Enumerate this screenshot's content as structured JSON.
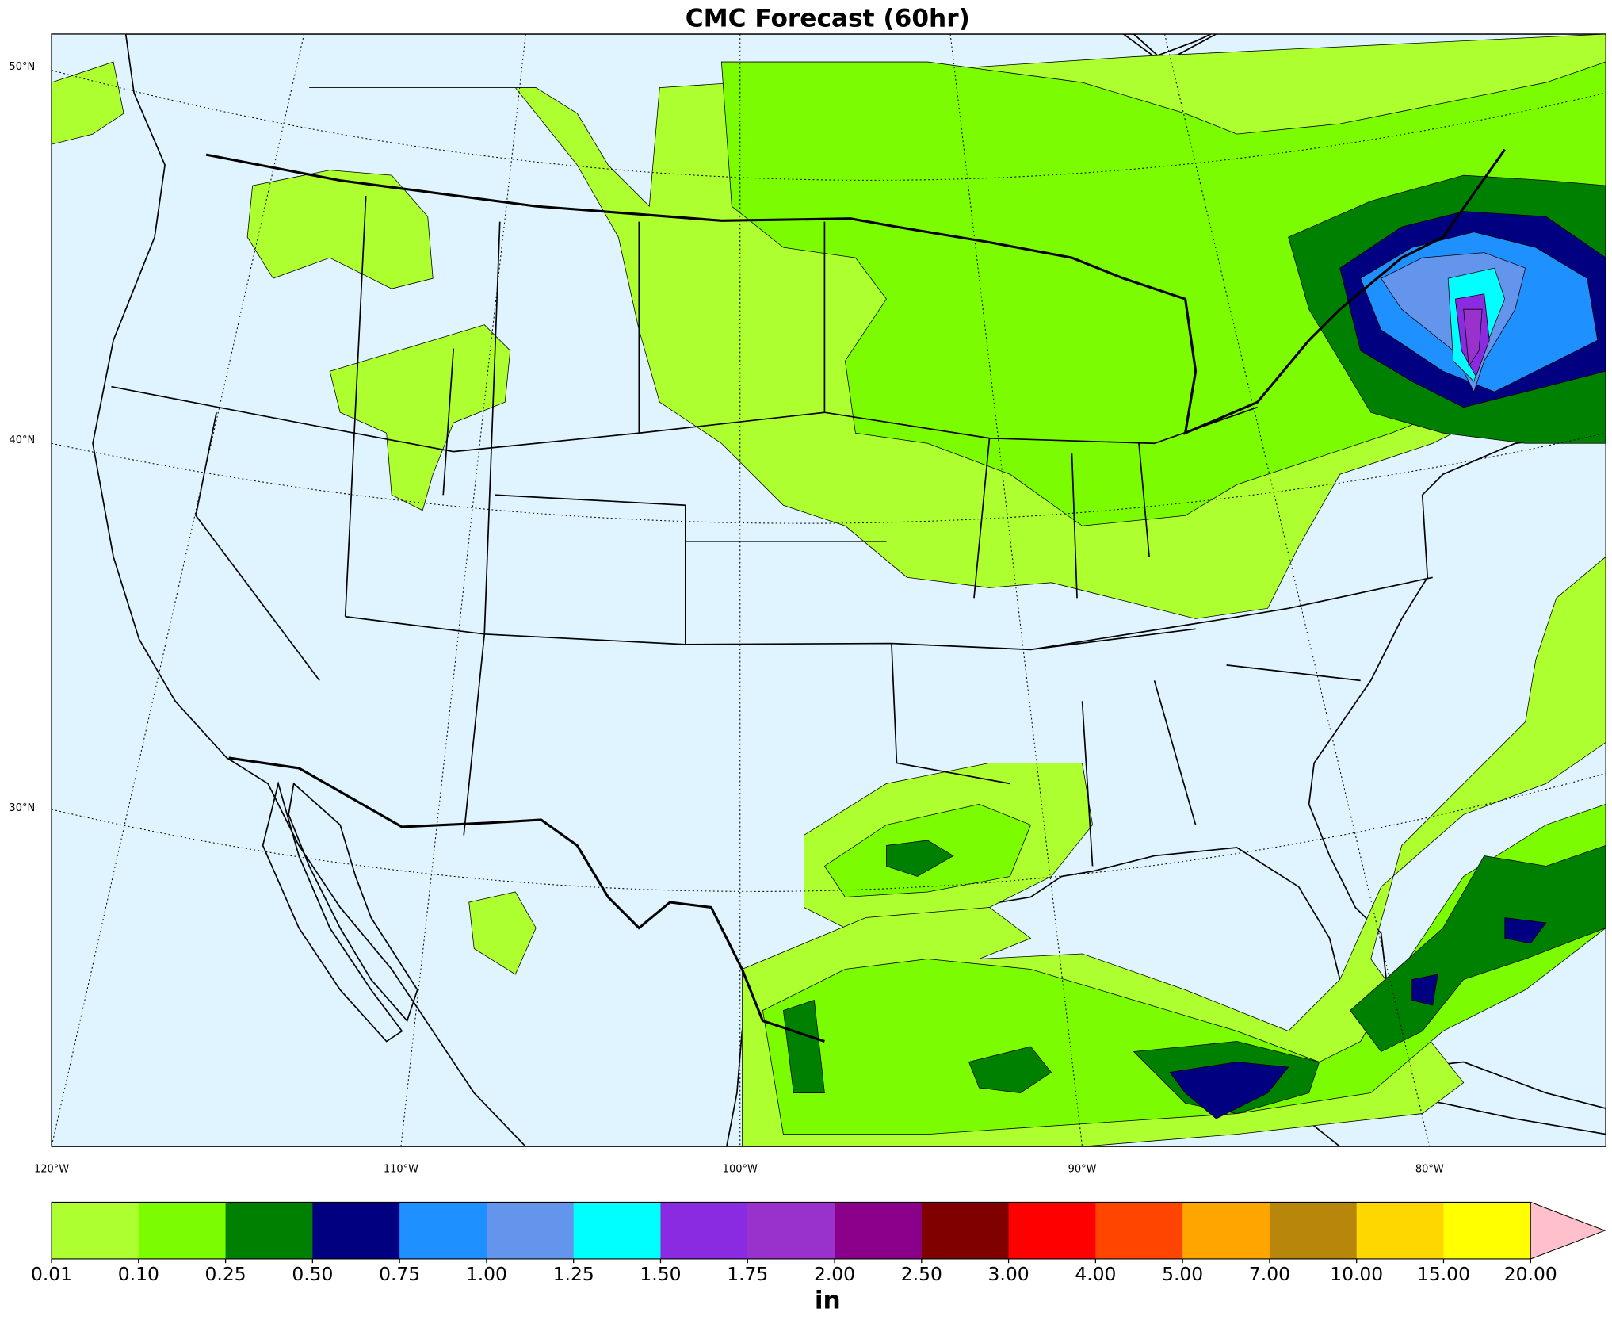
{
  "title": "CMC Forecast (60hr)",
  "map": {
    "lat_labels": [
      "50°N",
      "40°N",
      "30°N"
    ],
    "lon_labels": [
      "120°W",
      "110°W",
      "100°W",
      "90°W",
      "80°W"
    ]
  },
  "colorbar": {
    "unit": "in",
    "ticks": [
      {
        "value": 0.01,
        "label": "0.01"
      },
      {
        "value": 0.1,
        "label": "0.10"
      },
      {
        "value": 0.25,
        "label": "0.25"
      },
      {
        "value": 0.5,
        "label": "0.50"
      },
      {
        "value": 0.75,
        "label": "0.75"
      },
      {
        "value": 1,
        "label": "1.00"
      },
      {
        "value": 1.25,
        "label": "1.25"
      },
      {
        "value": 1.5,
        "label": "1.50"
      },
      {
        "value": 1.75,
        "label": "1.75"
      },
      {
        "value": 2,
        "label": "2.00"
      },
      {
        "value": 2.5,
        "label": "2.50"
      },
      {
        "value": 3,
        "label": "3.00"
      },
      {
        "value": 4,
        "label": "4.00"
      },
      {
        "value": 5,
        "label": "5.00"
      },
      {
        "value": 7,
        "label": "7.00"
      },
      {
        "value": 10,
        "label": "10.00"
      },
      {
        "value": 15,
        "label": "15.00"
      },
      {
        "value": 20,
        "label": "20.00"
      }
    ],
    "colors": [
      "#adff2f",
      "#7cfc00",
      "#008000",
      "#000080",
      "#1e90ff",
      "#6495ed",
      "#00ffff",
      "#8a2be2",
      "#9932cc",
      "#8b008b",
      "#800000",
      "#ff0000",
      "#ff4500",
      "#ffa500",
      "#b8860b",
      "#ffd700",
      "#ffff00"
    ],
    "extend_color": "#ffc0cb"
  }
}
